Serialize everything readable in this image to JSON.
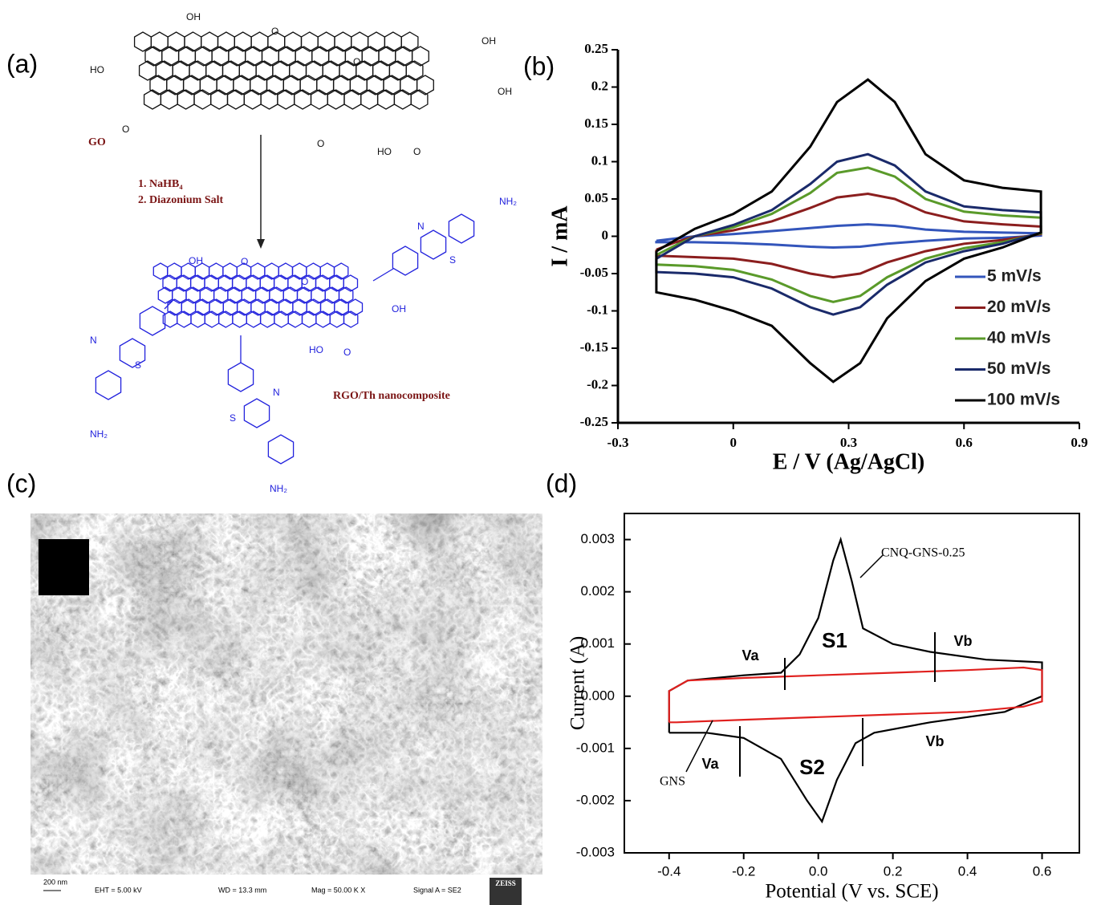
{
  "panel_labels": [
    "(a)",
    "(b)",
    "(c)",
    "(d)"
  ],
  "diagram": {
    "go_label": "GO",
    "reagents": [
      "1.  NaHB₄",
      "2.  Diazonium Salt"
    ],
    "product_label": "RGO/Th nanocomposite",
    "go_groups": [
      "OH",
      "O",
      "O",
      "OH",
      "HO",
      "OH",
      "O",
      "O",
      "HO",
      "O"
    ],
    "product_groups": [
      "OH",
      "O",
      "O",
      "OH",
      "HO",
      "O",
      "N",
      "S",
      "NH₂",
      "N",
      "S",
      "NH₂",
      "N",
      "S",
      "NH₂"
    ]
  },
  "sem": {
    "scale_bar": "200 nm",
    "info": [
      "EHT =  5.00 kV",
      "WD = 13.3 mm",
      "Mag =   50.00 K X",
      "Signal A = SE2"
    ],
    "logo": "ZEISS"
  },
  "chart_data": [
    {
      "type": "line",
      "xlabel": "E / V (Ag/AgCl)",
      "ylabel": "I / mA",
      "xlim": [
        -0.3,
        0.9
      ],
      "xticks": [
        -0.3,
        0,
        0.3,
        0.6,
        0.9
      ],
      "ylim": [
        -0.25,
        0.25
      ],
      "yticks": [
        -0.25,
        -0.2,
        -0.15,
        -0.1,
        -0.05,
        0,
        0.05,
        0.1,
        0.15,
        0.2,
        0.25
      ],
      "legend": "lower right",
      "x": [
        -0.2,
        -0.15,
        -0.1,
        0,
        0.1,
        0.2,
        0.27,
        0.35,
        0.42,
        0.5,
        0.6,
        0.7,
        0.8,
        0.8,
        0.7,
        0.6,
        0.5,
        0.4,
        0.33,
        0.26,
        0.2,
        0.1,
        0,
        -0.1,
        -0.2,
        -0.2
      ],
      "series": [
        {
          "name": "5 mV/s",
          "color": "#3355bb",
          "values": [
            -0.006,
            -0.003,
            0,
            0.003,
            0.007,
            0.011,
            0.014,
            0.016,
            0.014,
            0.009,
            0.006,
            0.005,
            0.004,
            0.001,
            -0.002,
            -0.003,
            -0.006,
            -0.01,
            -0.014,
            -0.015,
            -0.014,
            -0.011,
            -0.009,
            -0.008,
            -0.008,
            -0.006
          ]
        },
        {
          "name": "20 mV/s",
          "color": "#8b1e1e",
          "values": [
            -0.018,
            -0.008,
            0,
            0.008,
            0.02,
            0.038,
            0.052,
            0.057,
            0.05,
            0.032,
            0.02,
            0.016,
            0.013,
            0.003,
            -0.005,
            -0.01,
            -0.02,
            -0.035,
            -0.05,
            -0.055,
            -0.05,
            -0.037,
            -0.03,
            -0.028,
            -0.026,
            -0.018
          ]
        },
        {
          "name": "40 mV/s",
          "color": "#5a9a2a",
          "values": [
            -0.025,
            -0.012,
            0,
            0.012,
            0.03,
            0.058,
            0.085,
            0.092,
            0.08,
            0.05,
            0.033,
            0.028,
            0.025,
            0.004,
            -0.008,
            -0.016,
            -0.03,
            -0.055,
            -0.08,
            -0.088,
            -0.08,
            -0.058,
            -0.045,
            -0.04,
            -0.038,
            -0.025
          ]
        },
        {
          "name": "50 mV/s",
          "color": "#1a2a6a",
          "values": [
            -0.03,
            -0.015,
            0,
            0.015,
            0.035,
            0.07,
            0.1,
            0.11,
            0.095,
            0.06,
            0.04,
            0.035,
            0.032,
            0.005,
            -0.01,
            -0.02,
            -0.035,
            -0.065,
            -0.095,
            -0.105,
            -0.095,
            -0.07,
            -0.055,
            -0.05,
            -0.048,
            -0.03
          ]
        },
        {
          "name": "100 mV/s",
          "color": "#000000",
          "values": [
            -0.02,
            -0.005,
            0.01,
            0.03,
            0.06,
            0.12,
            0.18,
            0.21,
            0.18,
            0.11,
            0.075,
            0.065,
            0.06,
            0.005,
            -0.015,
            -0.03,
            -0.06,
            -0.11,
            -0.17,
            -0.195,
            -0.17,
            -0.12,
            -0.1,
            -0.085,
            -0.075,
            -0.02
          ]
        }
      ]
    },
    {
      "type": "line",
      "xlabel": "Potential (V vs. SCE)",
      "ylabel": "Current (A)",
      "xlim": [
        -0.52,
        0.7
      ],
      "xticks": [
        -0.4,
        -0.2,
        {
          "value": 0,
          "label": "0.0"
        },
        0.2,
        0.4,
        0.6
      ],
      "ylim": [
        -0.003,
        0.0035
      ],
      "yticks": [
        -0.003,
        -0.002,
        -0.001,
        {
          "value": 0,
          "label": "0.000"
        },
        0.001,
        0.002,
        0.003
      ],
      "annotations": [
        "Va",
        "S1",
        "Vb",
        "Va",
        "S2",
        "Vb"
      ],
      "series": [
        {
          "name": "CNQ-GNS-0.25",
          "color": "#000000",
          "x": [
            -0.4,
            -0.4,
            -0.35,
            -0.2,
            -0.1,
            -0.05,
            0,
            0.04,
            0.06,
            0.09,
            0.12,
            0.2,
            0.3,
            0.45,
            0.6,
            0.6,
            0.5,
            0.3,
            0.15,
            0.1,
            0.05,
            0.01,
            -0.03,
            -0.1,
            -0.2,
            -0.3,
            -0.4
          ],
          "values": [
            -0.0007,
            0.0001,
            0.0003,
            0.0004,
            0.00045,
            0.0008,
            0.0015,
            0.0026,
            0.003,
            0.0022,
            0.0013,
            0.001,
            0.00085,
            0.0007,
            0.00065,
            0.0,
            -0.0003,
            -0.0005,
            -0.0007,
            -0.0009,
            -0.0016,
            -0.0024,
            -0.002,
            -0.0012,
            -0.0008,
            -0.0007,
            -0.0007
          ]
        },
        {
          "name": "GNS",
          "color": "#e0201e",
          "x": [
            -0.4,
            -0.4,
            -0.35,
            -0.2,
            0,
            0.2,
            0.4,
            0.55,
            0.6,
            0.6,
            0.55,
            0.4,
            0.2,
            0,
            -0.2,
            -0.38,
            -0.4
          ],
          "values": [
            -0.0005,
            0.0001,
            0.0003,
            0.00035,
            0.0004,
            0.00045,
            0.0005,
            0.00055,
            0.0005,
            -0.0001,
            -0.0002,
            -0.0003,
            -0.00035,
            -0.0004,
            -0.00045,
            -0.0005,
            -0.0005
          ]
        }
      ]
    }
  ]
}
